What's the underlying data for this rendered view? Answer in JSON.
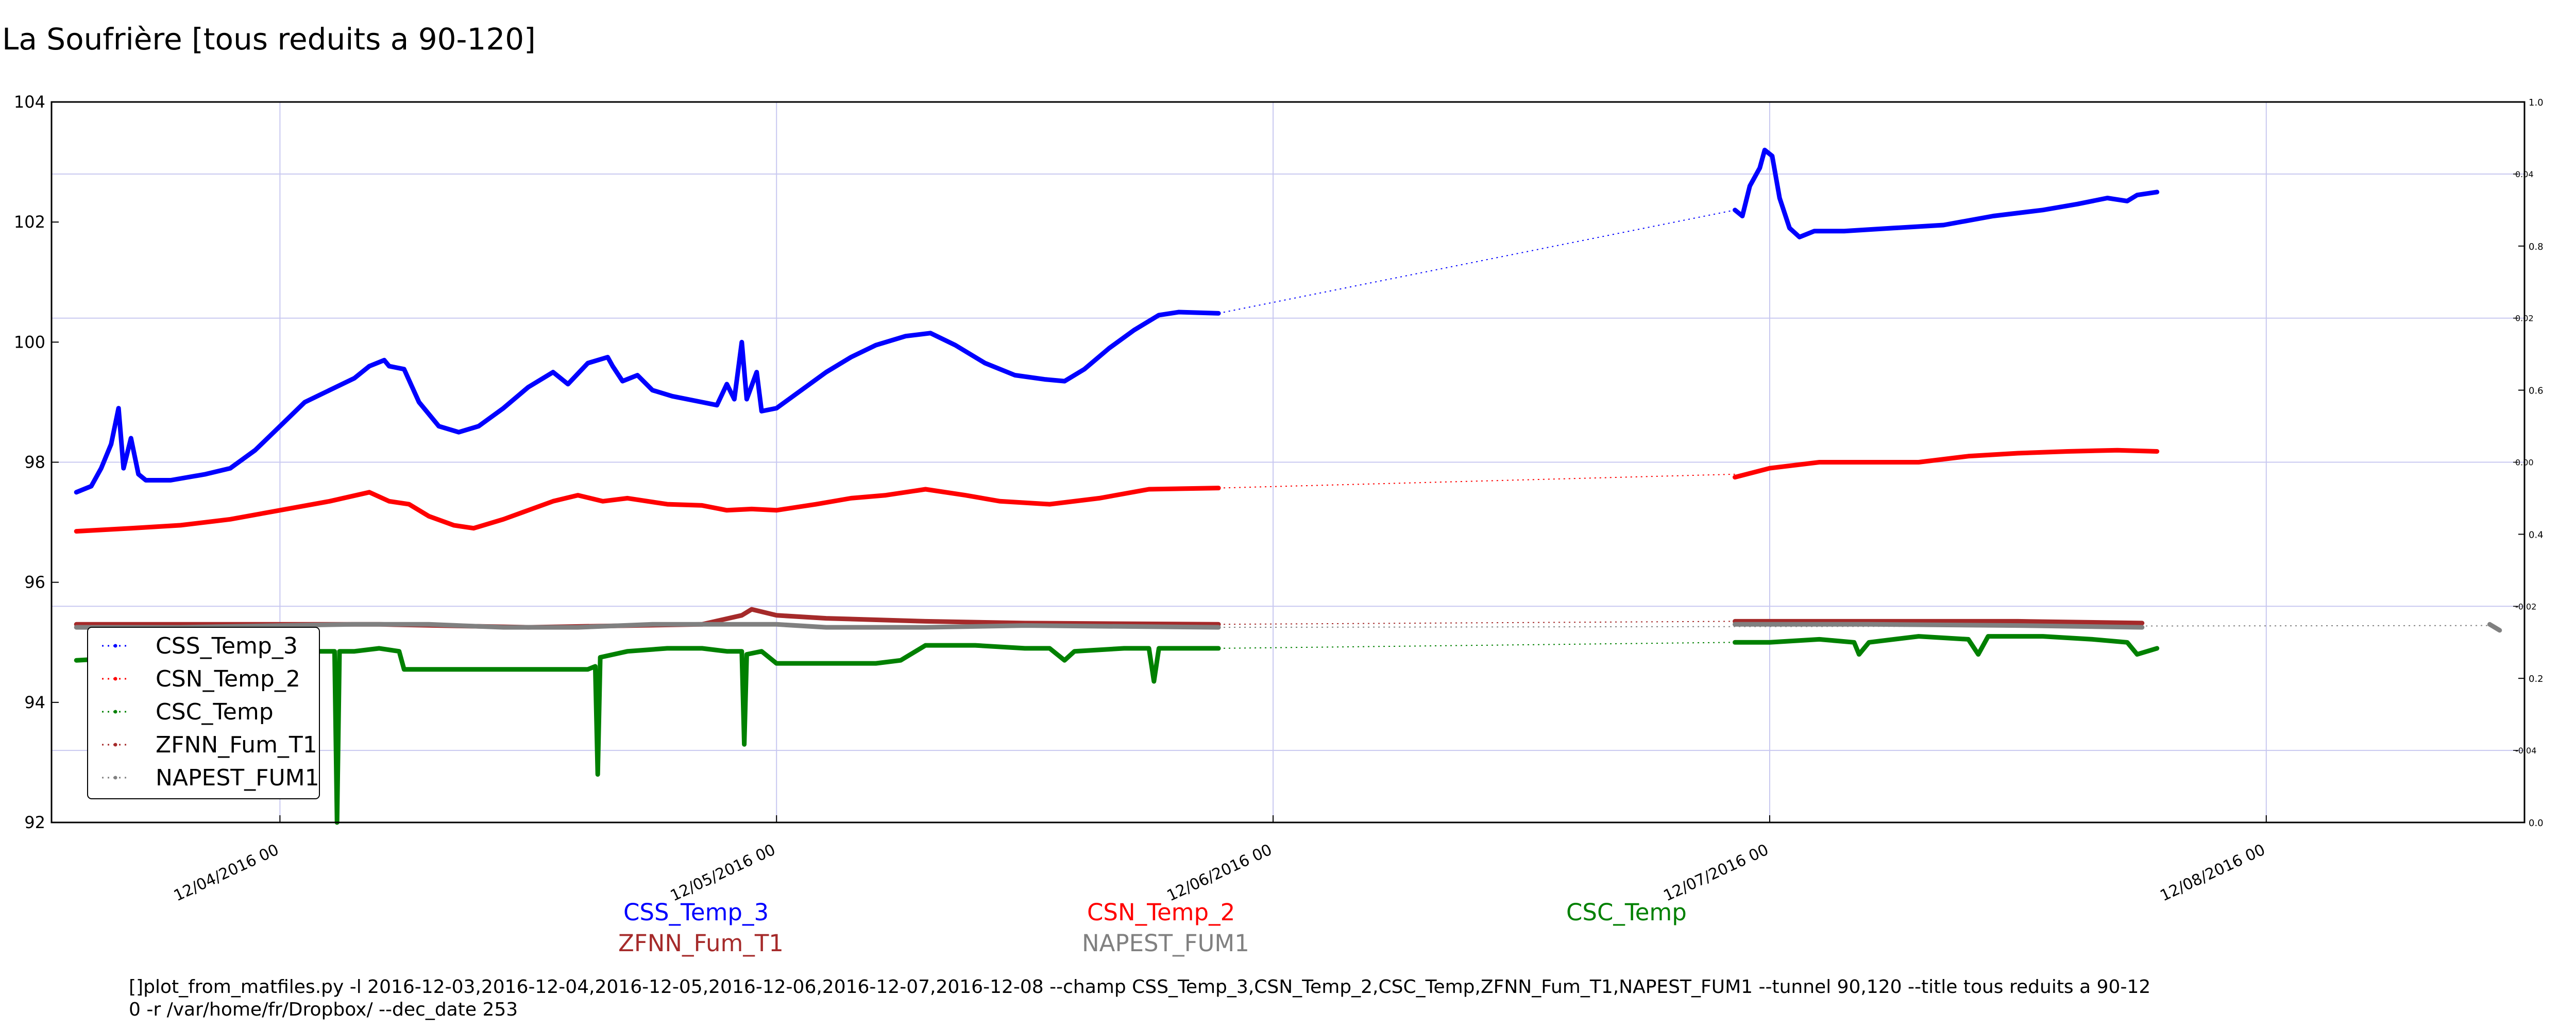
{
  "chart_data": {
    "type": "line",
    "title": "La Soufrière [tous reduits a 90-120]",
    "xlabel": "",
    "ylabel": "",
    "x_ticks": [
      "12/04/2016 00",
      "12/05/2016 00",
      "12/06/2016 00",
      "12/07/2016 00",
      "12/08/2016 00"
    ],
    "y_ticks": [
      "92",
      "94",
      "96",
      "98",
      "100",
      "102",
      "104"
    ],
    "ylim": [
      92,
      104
    ],
    "xlim_days": [
      -0.46,
      4.52
    ],
    "right_axis_ticks": [
      "0.0",
      "0.2",
      "0.4",
      "0.6",
      "0.8",
      "1.0"
    ],
    "right_axis_ticks_secondary": [
      "-0.04",
      "-0.02",
      "0.00",
      "0.02",
      "0.04"
    ],
    "grid": true,
    "legend_position": "lower-left",
    "series": [
      {
        "name": "CSS_Temp_3",
        "color": "#0000ff",
        "segments": [
          [
            [
              -0.41,
              97.5
            ],
            [
              -0.38,
              97.6
            ],
            [
              -0.36,
              97.9
            ],
            [
              -0.34,
              98.3
            ],
            [
              -0.325,
              98.9
            ],
            [
              -0.315,
              97.9
            ],
            [
              -0.3,
              98.4
            ],
            [
              -0.285,
              97.8
            ],
            [
              -0.27,
              97.7
            ],
            [
              -0.22,
              97.7
            ],
            [
              -0.15,
              97.8
            ],
            [
              -0.1,
              97.9
            ],
            [
              -0.05,
              98.2
            ],
            [
              0.0,
              98.6
            ],
            [
              0.05,
              99.0
            ],
            [
              0.1,
              99.2
            ],
            [
              0.15,
              99.4
            ],
            [
              0.18,
              99.6
            ],
            [
              0.21,
              99.7
            ],
            [
              0.22,
              99.6
            ],
            [
              0.25,
              99.55
            ],
            [
              0.28,
              99.0
            ],
            [
              0.32,
              98.6
            ],
            [
              0.36,
              98.5
            ],
            [
              0.4,
              98.6
            ],
            [
              0.45,
              98.9
            ],
            [
              0.5,
              99.25
            ],
            [
              0.55,
              99.5
            ],
            [
              0.58,
              99.3
            ],
            [
              0.62,
              99.65
            ],
            [
              0.66,
              99.75
            ],
            [
              0.67,
              99.6
            ],
            [
              0.69,
              99.35
            ],
            [
              0.72,
              99.45
            ],
            [
              0.75,
              99.2
            ],
            [
              0.79,
              99.1
            ],
            [
              0.85,
              99.0
            ],
            [
              0.88,
              98.95
            ],
            [
              0.9,
              99.3
            ],
            [
              0.915,
              99.05
            ],
            [
              0.93,
              100.0
            ],
            [
              0.94,
              99.05
            ],
            [
              0.96,
              99.5
            ],
            [
              0.97,
              98.85
            ],
            [
              1.0,
              98.9
            ],
            [
              1.05,
              99.2
            ],
            [
              1.1,
              99.5
            ],
            [
              1.15,
              99.75
            ],
            [
              1.2,
              99.95
            ],
            [
              1.26,
              100.1
            ],
            [
              1.31,
              100.15
            ],
            [
              1.36,
              99.95
            ],
            [
              1.42,
              99.65
            ],
            [
              1.48,
              99.45
            ],
            [
              1.54,
              99.38
            ],
            [
              1.58,
              99.35
            ],
            [
              1.62,
              99.55
            ],
            [
              1.67,
              99.9
            ],
            [
              1.72,
              100.2
            ],
            [
              1.77,
              100.45
            ],
            [
              1.81,
              100.5
            ],
            [
              1.89,
              100.48
            ]
          ],
          [
            [
              2.93,
              102.2
            ],
            [
              2.945,
              102.1
            ],
            [
              2.96,
              102.6
            ],
            [
              2.98,
              102.9
            ],
            [
              2.99,
              103.2
            ],
            [
              3.005,
              103.1
            ],
            [
              3.02,
              102.4
            ],
            [
              3.04,
              101.9
            ],
            [
              3.06,
              101.75
            ],
            [
              3.09,
              101.85
            ],
            [
              3.15,
              101.85
            ],
            [
              3.25,
              101.9
            ],
            [
              3.35,
              101.95
            ],
            [
              3.45,
              102.1
            ],
            [
              3.55,
              102.2
            ],
            [
              3.62,
              102.3
            ],
            [
              3.68,
              102.4
            ],
            [
              3.72,
              102.35
            ],
            [
              3.74,
              102.45
            ],
            [
              3.78,
              102.5
            ]
          ]
        ],
        "gap_lines": [
          [
            [
              1.89,
              100.48
            ],
            [
              2.93,
              102.2
            ]
          ]
        ]
      },
      {
        "name": "CSN_Temp_2",
        "color": "#ff0000",
        "segments": [
          [
            [
              -0.41,
              96.85
            ],
            [
              -0.3,
              96.9
            ],
            [
              -0.2,
              96.95
            ],
            [
              -0.1,
              97.05
            ],
            [
              0.0,
              97.2
            ],
            [
              0.1,
              97.35
            ],
            [
              0.18,
              97.5
            ],
            [
              0.22,
              97.35
            ],
            [
              0.26,
              97.3
            ],
            [
              0.3,
              97.1
            ],
            [
              0.35,
              96.95
            ],
            [
              0.39,
              96.9
            ],
            [
              0.45,
              97.05
            ],
            [
              0.5,
              97.2
            ],
            [
              0.55,
              97.35
            ],
            [
              0.6,
              97.45
            ],
            [
              0.65,
              97.35
            ],
            [
              0.7,
              97.4
            ],
            [
              0.78,
              97.3
            ],
            [
              0.85,
              97.28
            ],
            [
              0.9,
              97.2
            ],
            [
              0.95,
              97.22
            ],
            [
              1.0,
              97.2
            ],
            [
              1.08,
              97.3
            ],
            [
              1.15,
              97.4
            ],
            [
              1.22,
              97.45
            ],
            [
              1.3,
              97.55
            ],
            [
              1.38,
              97.45
            ],
            [
              1.45,
              97.35
            ],
            [
              1.55,
              97.3
            ],
            [
              1.65,
              97.4
            ],
            [
              1.75,
              97.55
            ],
            [
              1.89,
              97.57
            ]
          ],
          [
            [
              2.93,
              97.75
            ],
            [
              3.0,
              97.9
            ],
            [
              3.1,
              98.0
            ],
            [
              3.2,
              98.0
            ],
            [
              3.3,
              98.0
            ],
            [
              3.4,
              98.1
            ],
            [
              3.5,
              98.15
            ],
            [
              3.6,
              98.18
            ],
            [
              3.7,
              98.2
            ],
            [
              3.78,
              98.18
            ]
          ]
        ],
        "gap_lines": [
          [
            [
              1.89,
              97.57
            ],
            [
              2.93,
              97.8
            ]
          ]
        ]
      },
      {
        "name": "CSC_Temp",
        "color": "#008000",
        "segments": [
          [
            [
              -0.41,
              94.7
            ],
            [
              -0.3,
              94.75
            ],
            [
              -0.2,
              94.75
            ],
            [
              -0.1,
              94.8
            ],
            [
              0.0,
              94.85
            ],
            [
              0.08,
              94.85
            ],
            [
              0.11,
              94.85
            ],
            [
              0.115,
              92.0
            ],
            [
              0.12,
              94.85
            ],
            [
              0.15,
              94.85
            ],
            [
              0.2,
              94.9
            ],
            [
              0.24,
              94.85
            ],
            [
              0.25,
              94.55
            ],
            [
              0.35,
              94.55
            ],
            [
              0.45,
              94.55
            ],
            [
              0.55,
              94.55
            ],
            [
              0.62,
              94.55
            ],
            [
              0.635,
              94.6
            ],
            [
              0.64,
              92.8
            ],
            [
              0.645,
              94.75
            ],
            [
              0.7,
              94.85
            ],
            [
              0.78,
              94.9
            ],
            [
              0.85,
              94.9
            ],
            [
              0.9,
              94.85
            ],
            [
              0.93,
              94.85
            ],
            [
              0.935,
              93.3
            ],
            [
              0.94,
              94.8
            ],
            [
              0.97,
              94.85
            ],
            [
              1.0,
              94.65
            ],
            [
              1.1,
              94.65
            ],
            [
              1.2,
              94.65
            ],
            [
              1.25,
              94.7
            ],
            [
              1.3,
              94.95
            ],
            [
              1.4,
              94.95
            ],
            [
              1.5,
              94.9
            ],
            [
              1.55,
              94.9
            ],
            [
              1.58,
              94.7
            ],
            [
              1.6,
              94.85
            ],
            [
              1.7,
              94.9
            ],
            [
              1.75,
              94.9
            ],
            [
              1.76,
              94.35
            ],
            [
              1.77,
              94.9
            ],
            [
              1.89,
              94.9
            ]
          ],
          [
            [
              2.93,
              95.0
            ],
            [
              3.0,
              95.0
            ],
            [
              3.1,
              95.05
            ],
            [
              3.17,
              95.0
            ],
            [
              3.18,
              94.8
            ],
            [
              3.2,
              95.0
            ],
            [
              3.3,
              95.1
            ],
            [
              3.4,
              95.05
            ],
            [
              3.42,
              94.8
            ],
            [
              3.44,
              95.1
            ],
            [
              3.55,
              95.1
            ],
            [
              3.65,
              95.05
            ],
            [
              3.72,
              95.0
            ],
            [
              3.74,
              94.8
            ],
            [
              3.78,
              94.9
            ]
          ]
        ],
        "gap_lines": [
          [
            [
              1.89,
              94.9
            ],
            [
              2.93,
              95.0
            ]
          ]
        ]
      },
      {
        "name": "ZFNN_Fum_T1",
        "color": "#a52a2a",
        "segments": [
          [
            [
              -0.41,
              95.3
            ],
            [
              -0.2,
              95.3
            ],
            [
              0.0,
              95.3
            ],
            [
              0.2,
              95.3
            ],
            [
              0.5,
              95.25
            ],
            [
              0.85,
              95.3
            ],
            [
              0.93,
              95.45
            ],
            [
              0.95,
              95.55
            ],
            [
              1.0,
              95.45
            ],
            [
              1.1,
              95.4
            ],
            [
              1.3,
              95.35
            ],
            [
              1.5,
              95.32
            ],
            [
              1.89,
              95.3
            ]
          ],
          [
            [
              2.93,
              95.35
            ],
            [
              3.2,
              95.35
            ],
            [
              3.5,
              95.35
            ],
            [
              3.75,
              95.32
            ]
          ]
        ],
        "gap_lines": [
          [
            [
              1.89,
              95.3
            ],
            [
              2.93,
              95.35
            ]
          ]
        ]
      },
      {
        "name": "NAPEST_FUM1",
        "color": "#808080",
        "segments": [
          [
            [
              -0.41,
              95.25
            ],
            [
              -0.2,
              95.25
            ],
            [
              0.0,
              95.28
            ],
            [
              0.15,
              95.3
            ],
            [
              0.3,
              95.3
            ],
            [
              0.45,
              95.25
            ],
            [
              0.6,
              95.25
            ],
            [
              0.75,
              95.3
            ],
            [
              0.9,
              95.3
            ],
            [
              1.0,
              95.3
            ],
            [
              1.1,
              95.25
            ],
            [
              1.3,
              95.25
            ],
            [
              1.5,
              95.28
            ],
            [
              1.89,
              95.25
            ]
          ],
          [
            [
              2.93,
              95.3
            ],
            [
              3.2,
              95.3
            ],
            [
              3.5,
              95.28
            ],
            [
              3.75,
              95.25
            ]
          ],
          [
            [
              4.45,
              95.3
            ],
            [
              4.47,
              95.2
            ]
          ]
        ],
        "gap_lines": [
          [
            [
              1.89,
              95.25
            ],
            [
              4.45,
              95.28
            ]
          ]
        ]
      }
    ]
  },
  "bottom_legend": [
    "CSS_Temp_3",
    "CSN_Temp_2",
    "CSC_Temp",
    "ZFNN_Fum_T1",
    "NAPEST_FUM1"
  ],
  "footer": {
    "line1": "[]plot_from_matfiles.py -l 2016-12-03,2016-12-04,2016-12-05,2016-12-06,2016-12-07,2016-12-08 --champ CSS_Temp_3,CSN_Temp_2,CSC_Temp,ZFNN_Fum_T1,NAPEST_FUM1 --tunnel 90,120 --title tous reduits a 90-12",
    "line2": "0 -r /var/home/fr/Dropbox/ --dec_date 253"
  }
}
